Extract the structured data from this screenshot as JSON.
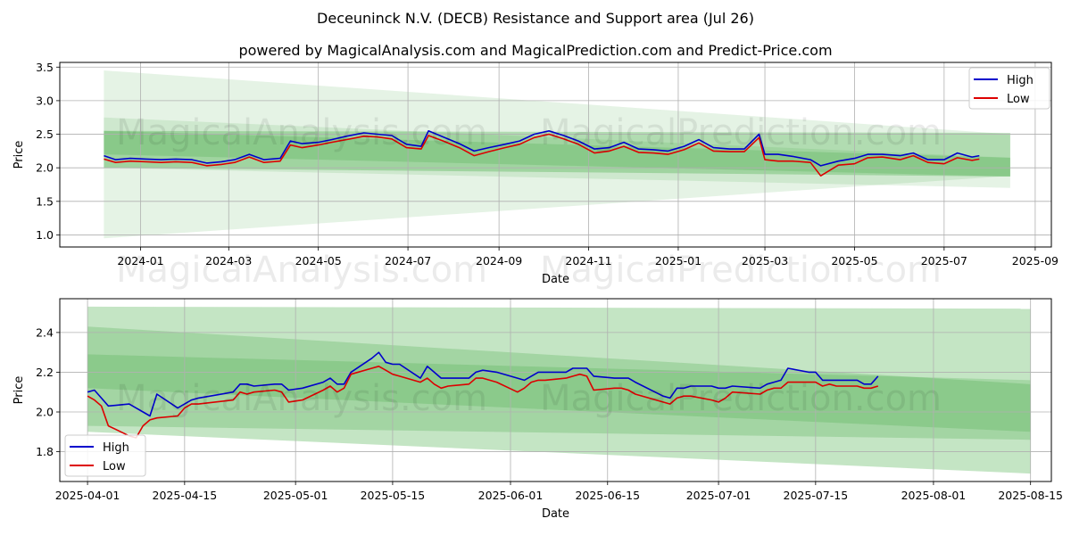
{
  "title": "Deceuninck N.V. (DECB) Resistance and Support area (Jul 26)",
  "subtitle": "powered by MagicalAnalysis.com and MagicalPrediction.com and Predict-Price.com",
  "watermarks": [
    "MagicalAnalysis.com",
    "MagicalPrediction.com"
  ],
  "colors": {
    "high": "#0000cc",
    "low": "#dd0000",
    "band": "#2ca02c",
    "grid": "#b0b0b0"
  },
  "chart_data": [
    {
      "type": "line",
      "xlabel": "Date",
      "ylabel": "Price",
      "xlim": [
        "2023-11-07",
        "2025-09-12"
      ],
      "ylim": [
        0.82,
        3.57
      ],
      "grid": true,
      "legend": "top-right",
      "x_ticks": [
        "2024-01",
        "2024-03",
        "2024-05",
        "2024-07",
        "2024-09",
        "2024-11",
        "2025-01",
        "2025-03",
        "2025-05",
        "2025-07",
        "2025-09"
      ],
      "y_ticks": [
        "1.0",
        "1.5",
        "2.0",
        "2.5",
        "3.0",
        "3.5"
      ],
      "bands": [
        {
          "x": [
            "2023-12-07",
            "2025-08-15"
          ],
          "upper": [
            3.45,
            2.5
          ],
          "lower": [
            0.95,
            1.88
          ],
          "alpha": 0.12
        },
        {
          "x": [
            "2023-12-07",
            "2025-08-15"
          ],
          "upper": [
            2.75,
            2.15
          ],
          "lower": [
            2.0,
            1.7
          ],
          "alpha": 0.12
        },
        {
          "x": [
            "2023-12-07",
            "2025-08-15"
          ],
          "upper": [
            2.55,
            2.52
          ],
          "lower": [
            2.0,
            1.87
          ],
          "alpha": 0.28
        },
        {
          "x": [
            "2023-12-07",
            "2025-08-15"
          ],
          "upper": [
            2.55,
            2.15
          ],
          "lower": [
            2.2,
            1.87
          ],
          "alpha": 0.2
        }
      ],
      "series": [
        {
          "name": "High",
          "x": [
            "2023-12-07",
            "2023-12-15",
            "2023-12-25",
            "2024-01-05",
            "2024-01-15",
            "2024-01-25",
            "2024-02-05",
            "2024-02-15",
            "2024-02-25",
            "2024-03-05",
            "2024-03-15",
            "2024-03-25",
            "2024-04-05",
            "2024-04-12",
            "2024-04-20",
            "2024-05-01",
            "2024-05-10",
            "2024-05-20",
            "2024-06-01",
            "2024-06-10",
            "2024-06-20",
            "2024-06-30",
            "2024-07-10",
            "2024-07-15",
            "2024-07-25",
            "2024-08-05",
            "2024-08-15",
            "2024-08-25",
            "2024-09-05",
            "2024-09-15",
            "2024-09-25",
            "2024-10-05",
            "2024-10-15",
            "2024-10-25",
            "2024-11-05",
            "2024-11-15",
            "2024-11-25",
            "2024-12-05",
            "2024-12-15",
            "2024-12-25",
            "2025-01-05",
            "2025-01-15",
            "2025-01-25",
            "2025-02-05",
            "2025-02-15",
            "2025-02-25",
            "2025-03-01",
            "2025-03-10",
            "2025-03-20",
            "2025-04-01",
            "2025-04-08",
            "2025-04-20",
            "2025-05-01",
            "2025-05-10",
            "2025-05-20",
            "2025-06-01",
            "2025-06-10",
            "2025-06-20",
            "2025-07-01",
            "2025-07-10",
            "2025-07-20",
            "2025-07-25"
          ],
          "values": [
            2.18,
            2.12,
            2.14,
            2.13,
            2.12,
            2.13,
            2.12,
            2.07,
            2.09,
            2.12,
            2.2,
            2.12,
            2.14,
            2.4,
            2.36,
            2.38,
            2.42,
            2.47,
            2.52,
            2.5,
            2.48,
            2.35,
            2.32,
            2.55,
            2.46,
            2.36,
            2.25,
            2.3,
            2.35,
            2.4,
            2.5,
            2.55,
            2.48,
            2.4,
            2.28,
            2.3,
            2.38,
            2.28,
            2.27,
            2.25,
            2.32,
            2.42,
            2.3,
            2.28,
            2.28,
            2.5,
            2.2,
            2.2,
            2.17,
            2.12,
            2.03,
            2.1,
            2.14,
            2.2,
            2.2,
            2.18,
            2.22,
            2.12,
            2.12,
            2.22,
            2.16,
            2.18
          ]
        },
        {
          "name": "Low",
          "x": [
            "2023-12-07",
            "2023-12-15",
            "2023-12-25",
            "2024-01-05",
            "2024-01-15",
            "2024-01-25",
            "2024-02-05",
            "2024-02-15",
            "2024-02-25",
            "2024-03-05",
            "2024-03-15",
            "2024-03-25",
            "2024-04-05",
            "2024-04-12",
            "2024-04-20",
            "2024-05-01",
            "2024-05-10",
            "2024-05-20",
            "2024-06-01",
            "2024-06-10",
            "2024-06-20",
            "2024-06-30",
            "2024-07-10",
            "2024-07-15",
            "2024-07-25",
            "2024-08-05",
            "2024-08-15",
            "2024-08-25",
            "2024-09-05",
            "2024-09-15",
            "2024-09-25",
            "2024-10-05",
            "2024-10-15",
            "2024-10-25",
            "2024-11-05",
            "2024-11-15",
            "2024-11-25",
            "2024-12-05",
            "2024-12-15",
            "2024-12-25",
            "2025-01-05",
            "2025-01-15",
            "2025-01-25",
            "2025-02-05",
            "2025-02-15",
            "2025-02-25",
            "2025-03-01",
            "2025-03-10",
            "2025-03-20",
            "2025-04-01",
            "2025-04-08",
            "2025-04-20",
            "2025-05-01",
            "2025-05-10",
            "2025-05-20",
            "2025-06-01",
            "2025-06-10",
            "2025-06-20",
            "2025-07-01",
            "2025-07-10",
            "2025-07-20",
            "2025-07-25"
          ],
          "values": [
            2.13,
            2.08,
            2.1,
            2.09,
            2.08,
            2.09,
            2.08,
            2.03,
            2.05,
            2.08,
            2.16,
            2.08,
            2.1,
            2.34,
            2.3,
            2.34,
            2.38,
            2.42,
            2.47,
            2.46,
            2.43,
            2.3,
            2.28,
            2.48,
            2.4,
            2.3,
            2.18,
            2.24,
            2.3,
            2.35,
            2.45,
            2.5,
            2.43,
            2.35,
            2.22,
            2.25,
            2.32,
            2.23,
            2.22,
            2.2,
            2.27,
            2.37,
            2.25,
            2.24,
            2.24,
            2.45,
            2.12,
            2.1,
            2.1,
            2.08,
            1.88,
            2.04,
            2.06,
            2.15,
            2.16,
            2.12,
            2.18,
            2.08,
            2.06,
            2.15,
            2.11,
            2.13
          ]
        }
      ]
    },
    {
      "type": "line",
      "xlabel": "Date",
      "ylabel": "Price",
      "xlim": [
        "2025-03-28",
        "2025-08-18"
      ],
      "ylim": [
        1.65,
        2.57
      ],
      "grid": true,
      "legend": "bottom-left",
      "x_ticks": [
        "2025-04-01",
        "2025-04-15",
        "2025-05-01",
        "2025-05-15",
        "2025-06-01",
        "2025-06-15",
        "2025-07-01",
        "2025-07-15",
        "2025-08-01",
        "2025-08-15"
      ],
      "y_ticks": [
        "1.8",
        "2.0",
        "2.2",
        "2.4"
      ],
      "bands": [
        {
          "x": [
            "2025-04-01",
            "2025-08-15"
          ],
          "upper": [
            2.53,
            2.52
          ],
          "lower": [
            1.9,
            1.69
          ],
          "alpha": 0.28
        },
        {
          "x": [
            "2025-04-01",
            "2025-08-15"
          ],
          "upper": [
            2.43,
            2.14
          ],
          "lower": [
            1.93,
            1.86
          ],
          "alpha": 0.22
        },
        {
          "x": [
            "2025-04-01",
            "2025-08-15"
          ],
          "upper": [
            2.29,
            2.16
          ],
          "lower": [
            2.12,
            1.9
          ],
          "alpha": 0.2
        }
      ],
      "series": [
        {
          "name": "High",
          "x": [
            "2025-04-01",
            "2025-04-02",
            "2025-04-03",
            "2025-04-04",
            "2025-04-07",
            "2025-04-08",
            "2025-04-09",
            "2025-04-10",
            "2025-04-11",
            "2025-04-14",
            "2025-04-15",
            "2025-04-16",
            "2025-04-17",
            "2025-04-22",
            "2025-04-23",
            "2025-04-24",
            "2025-04-25",
            "2025-04-28",
            "2025-04-29",
            "2025-04-30",
            "2025-05-02",
            "2025-05-05",
            "2025-05-06",
            "2025-05-07",
            "2025-05-08",
            "2025-05-09",
            "2025-05-12",
            "2025-05-13",
            "2025-05-14",
            "2025-05-15",
            "2025-05-16",
            "2025-05-19",
            "2025-05-20",
            "2025-05-21",
            "2025-05-22",
            "2025-05-23",
            "2025-05-26",
            "2025-05-27",
            "2025-05-28",
            "2025-05-30",
            "2025-06-02",
            "2025-06-03",
            "2025-06-04",
            "2025-06-05",
            "2025-06-06",
            "2025-06-09",
            "2025-06-10",
            "2025-06-11",
            "2025-06-12",
            "2025-06-13",
            "2025-06-16",
            "2025-06-17",
            "2025-06-18",
            "2025-06-19",
            "2025-06-23",
            "2025-06-24",
            "2025-06-25",
            "2025-06-26",
            "2025-06-27",
            "2025-06-30",
            "2025-07-01",
            "2025-07-02",
            "2025-07-03",
            "2025-07-07",
            "2025-07-08",
            "2025-07-09",
            "2025-07-10",
            "2025-07-11",
            "2025-07-14",
            "2025-07-15",
            "2025-07-16",
            "2025-07-17",
            "2025-07-18",
            "2025-07-21",
            "2025-07-22",
            "2025-07-23",
            "2025-07-24"
          ],
          "values": [
            2.1,
            2.11,
            2.07,
            2.03,
            2.04,
            2.02,
            2.0,
            1.98,
            2.09,
            2.02,
            2.04,
            2.06,
            2.07,
            2.1,
            2.14,
            2.14,
            2.13,
            2.14,
            2.14,
            2.11,
            2.12,
            2.15,
            2.17,
            2.14,
            2.14,
            2.2,
            2.27,
            2.3,
            2.25,
            2.24,
            2.24,
            2.17,
            2.23,
            2.2,
            2.17,
            2.17,
            2.17,
            2.2,
            2.21,
            2.2,
            2.17,
            2.16,
            2.18,
            2.2,
            2.2,
            2.2,
            2.22,
            2.22,
            2.22,
            2.18,
            2.17,
            2.17,
            2.17,
            2.15,
            2.08,
            2.07,
            2.12,
            2.12,
            2.13,
            2.13,
            2.12,
            2.12,
            2.13,
            2.12,
            2.14,
            2.15,
            2.16,
            2.22,
            2.2,
            2.2,
            2.16,
            2.16,
            2.16,
            2.16,
            2.14,
            2.14,
            2.18
          ]
        },
        {
          "name": "Low",
          "x": [
            "2025-04-01",
            "2025-04-02",
            "2025-04-03",
            "2025-04-04",
            "2025-04-07",
            "2025-04-08",
            "2025-04-09",
            "2025-04-10",
            "2025-04-11",
            "2025-04-14",
            "2025-04-15",
            "2025-04-16",
            "2025-04-17",
            "2025-04-22",
            "2025-04-23",
            "2025-04-24",
            "2025-04-25",
            "2025-04-28",
            "2025-04-29",
            "2025-04-30",
            "2025-05-02",
            "2025-05-05",
            "2025-05-06",
            "2025-05-07",
            "2025-05-08",
            "2025-05-09",
            "2025-05-12",
            "2025-05-13",
            "2025-05-14",
            "2025-05-15",
            "2025-05-16",
            "2025-05-19",
            "2025-05-20",
            "2025-05-21",
            "2025-05-22",
            "2025-05-23",
            "2025-05-26",
            "2025-05-27",
            "2025-05-28",
            "2025-05-30",
            "2025-06-02",
            "2025-06-03",
            "2025-06-04",
            "2025-06-05",
            "2025-06-06",
            "2025-06-09",
            "2025-06-10",
            "2025-06-11",
            "2025-06-12",
            "2025-06-13",
            "2025-06-16",
            "2025-06-17",
            "2025-06-18",
            "2025-06-19",
            "2025-06-23",
            "2025-06-24",
            "2025-06-25",
            "2025-06-26",
            "2025-06-27",
            "2025-06-30",
            "2025-07-01",
            "2025-07-02",
            "2025-07-03",
            "2025-07-07",
            "2025-07-08",
            "2025-07-09",
            "2025-07-10",
            "2025-07-11",
            "2025-07-14",
            "2025-07-15",
            "2025-07-16",
            "2025-07-17",
            "2025-07-18",
            "2025-07-21",
            "2025-07-22",
            "2025-07-23",
            "2025-07-24"
          ],
          "values": [
            2.08,
            2.06,
            2.03,
            1.93,
            1.88,
            1.87,
            1.93,
            1.96,
            1.97,
            1.98,
            2.02,
            2.04,
            2.04,
            2.06,
            2.1,
            2.09,
            2.1,
            2.11,
            2.1,
            2.05,
            2.06,
            2.11,
            2.13,
            2.1,
            2.12,
            2.19,
            2.22,
            2.23,
            2.21,
            2.19,
            2.18,
            2.15,
            2.17,
            2.14,
            2.12,
            2.13,
            2.14,
            2.17,
            2.17,
            2.15,
            2.1,
            2.12,
            2.15,
            2.16,
            2.16,
            2.17,
            2.18,
            2.19,
            2.18,
            2.11,
            2.12,
            2.12,
            2.11,
            2.09,
            2.05,
            2.04,
            2.07,
            2.08,
            2.08,
            2.06,
            2.05,
            2.07,
            2.1,
            2.09,
            2.11,
            2.12,
            2.12,
            2.15,
            2.15,
            2.15,
            2.13,
            2.14,
            2.13,
            2.13,
            2.12,
            2.12,
            2.13
          ]
        }
      ]
    }
  ]
}
